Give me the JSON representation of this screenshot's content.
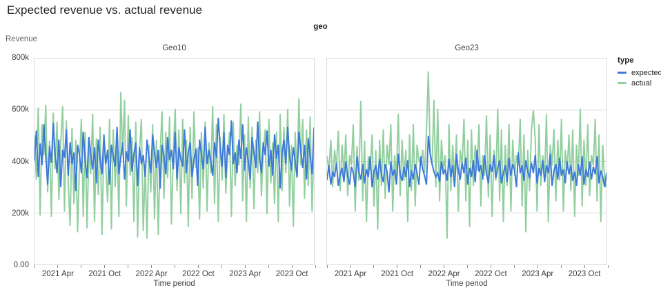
{
  "header": {
    "title": "Expected revenue vs. actual revenue"
  },
  "chart_data": {
    "type": "line",
    "facet_field": "geo",
    "xlabel": "Time period",
    "ylabel": "Revenue",
    "ylim": [
      0,
      800000
    ],
    "values_unit": "thousands",
    "grid": "horizontal",
    "y_tick_labels": [
      "800k",
      "600k",
      "400k",
      "200k",
      "0.00"
    ],
    "y_tick_values": [
      800,
      600,
      400,
      200,
      0
    ],
    "x_tick_labels": [
      "2021 Apr",
      "2021 Oct",
      "2022 Apr",
      "2022 Oct",
      "2023 Apr",
      "2023 Oct"
    ],
    "x_minor_ticks_per_facet": 13,
    "legend": {
      "title": "type",
      "position": "right",
      "entries": [
        {
          "label": "expected",
          "color": "#3d79d9"
        },
        {
          "label": "actual",
          "color": "#92cf9f"
        }
      ]
    },
    "facets": [
      {
        "title": "Geo10",
        "series": [
          {
            "name": "expected",
            "color": "#3d79d9",
            "values": [
              405,
              520,
              340,
              470,
              385,
              545,
              420,
              310,
              460,
              395,
              550,
              430,
              355,
              485,
              300,
              445,
              415,
              525,
              345,
              475,
              390,
              435,
              285,
              465,
              425,
              355,
              515,
              400,
              335,
              495,
              430,
              370,
              455,
              315,
              485,
              410,
              350,
              505,
              390,
              445,
              310,
              465,
              420,
              380,
              535,
              350,
              415,
              475,
              330,
              440,
              400,
              525,
              360,
              430,
              475,
              305,
              455,
              390,
              425,
              340,
              485,
              415,
              355,
              505,
              435,
              375,
              445,
              295,
              465,
              420,
              350,
              495,
              405,
              445,
              370,
              515,
              330,
              455,
              410,
              380,
              525,
              355,
              435,
              475,
              340,
              405,
              450,
              305,
              485,
              425,
              370,
              535,
              390,
              445,
              400,
              345,
              475,
              415,
              570,
              455,
              380,
              515,
              335,
              465,
              425,
              560,
              390,
              435,
              355,
              485,
              410,
              545,
              365,
              455,
              400,
              330,
              495,
              435,
              375,
              555,
              415,
              355,
              475,
              425,
              520,
              380,
              445,
              345,
              505,
              410,
              465,
              295,
              435,
              485,
              390,
              535,
              420,
              365,
              455,
              400,
              340,
              515,
              440,
              375,
              465,
              330,
              490,
              420,
              350,
              530
            ]
          },
          {
            "name": "actual",
            "color": "#92cf9f",
            "values": [
              500,
              330,
              610,
              190,
              545,
              425,
              620,
              280,
              480,
              185,
              590,
              370,
              555,
              250,
              470,
              615,
              205,
              560,
              310,
              150,
              530,
              235,
              485,
              125,
              405,
              565,
              185,
              515,
              140,
              455,
              350,
              585,
              165,
              490,
              270,
              535,
              115,
              470,
              385,
              240,
              565,
              135,
              525,
              300,
              465,
              185,
              670,
              425,
              640,
              225,
              580,
              345,
              495,
              165,
              555,
              105,
              445,
              565,
              130,
              385,
              100,
              465,
              280,
              545,
              175,
              485,
              115,
              425,
              595,
              255,
              515,
              335,
              575,
              155,
              435,
              605,
              285,
              525,
              195,
              565,
              315,
              485,
              145,
              535,
              255,
              595,
              375,
              455,
              175,
              515,
              295,
              555,
              205,
              475,
              355,
              615,
              235,
              545,
              165,
              495,
              325,
              585,
              275,
              435,
              515,
              185,
              555,
              305,
              465,
              385,
              625,
              245,
              505,
              165,
              575,
              295,
              535,
              215,
              485,
              355,
              595,
              265,
              445,
              525,
              195,
              565,
              315,
              475,
              235,
              515,
              165,
              585,
              285,
              535,
              355,
              605,
              225,
              465,
              145,
              515,
              335,
              645,
              385,
              565,
              255,
              525,
              305,
              575,
              205,
              480
            ]
          }
        ]
      },
      {
        "title": "Geo23",
        "series": [
          {
            "name": "expected",
            "color": "#3d79d9",
            "values": [
              330,
              385,
              310,
              360,
              340,
              395,
              305,
              350,
              375,
              320,
              400,
              345,
              310,
              380,
              355,
              300,
              420,
              360,
              330,
              390,
              315,
              370,
              340,
              420,
              300,
              360,
              385,
              330,
              410,
              350,
              320,
              390,
              360,
              280,
              400,
              345,
              370,
              310,
              430,
              350,
              325,
              380,
              340,
              405,
              300,
              365,
              330,
              390,
              355,
              310,
              420,
              370,
              345,
              310,
              500,
              430,
              390,
              360,
              340,
              355,
              320,
              400,
              350,
              370,
              325,
              410,
              340,
              385,
              300,
              430,
              365,
              330,
              395,
              355,
              415,
              310,
              375,
              340,
              405,
              320,
              445,
              360,
              385,
              330,
              425,
              355,
              315,
              390,
              360,
              425,
              335,
              375,
              405,
              315,
              355,
              385,
              320,
              415,
              345,
              390,
              365,
              300,
              435,
              355,
              385,
              325,
              405,
              360,
              335,
              395,
              355,
              425,
              315,
              375,
              345,
              405,
              320,
              385,
              355,
              430,
              305,
              365,
              390,
              330,
              415,
              345,
              370,
              315,
              400,
              350,
              385,
              325,
              360,
              305,
              390,
              345,
              420,
              310,
              370,
              340,
              400,
              330,
              380,
              350,
              420,
              315,
              365,
              340,
              300,
              355
            ]
          },
          {
            "name": "actual",
            "color": "#92cf9f",
            "values": [
              420,
              365,
              485,
              300,
              445,
              380,
              520,
              285,
              465,
              345,
              505,
              265,
              425,
              385,
              545,
              205,
              460,
              325,
              635,
              245,
              480,
              165,
              420,
              365,
              505,
              225,
              445,
              135,
              485,
              305,
              525,
              255,
              465,
              385,
              545,
              205,
              425,
              345,
              585,
              265,
              485,
              325,
              445,
              165,
              505,
              285,
              545,
              225,
              465,
              405,
              385,
              445,
              355,
              520,
              750,
              430,
              385,
              640,
              300,
              605,
              245,
              485,
              365,
              425,
              100,
              545,
              285,
              465,
              325,
              505,
              205,
              445,
              385,
              565,
              245,
              485,
              145,
              525,
              305,
              465,
              365,
              545,
              225,
              425,
              345,
              580,
              260,
              505,
              185,
              445,
              325,
              605,
              245,
              525,
              165,
              465,
              305,
              545,
              205,
              485,
              345,
              425,
              385,
              565,
              225,
              505,
              125,
              445,
              285,
              525,
              600,
              485,
              205,
              545,
              305,
              425,
              345,
              585,
              165,
              465,
              385,
              525,
              245,
              485,
              325,
              565,
              205,
              445,
              365,
              505,
              285,
              525,
              185,
              465,
              345,
              605,
              225,
              485,
              305,
              545,
              265,
              425,
              385,
              565,
              245,
              505,
              165,
              465,
              325,
              300
            ]
          }
        ]
      }
    ]
  }
}
